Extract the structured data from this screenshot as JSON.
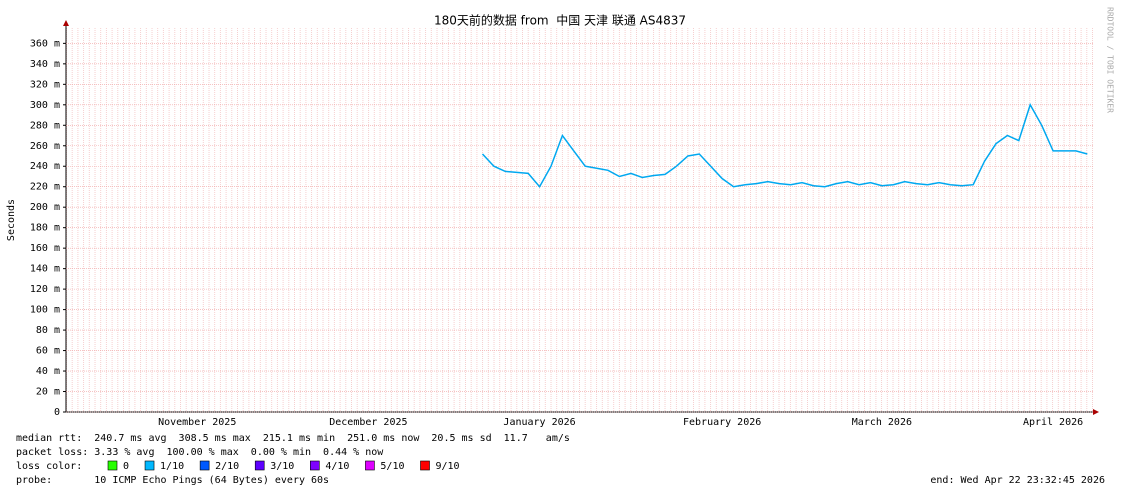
{
  "chart_data": {
    "type": "line",
    "title": "180天前的数据 from  中国 天津 联通 AS4837",
    "y_label": "Seconds",
    "watermark": "RRDTOOL / TOBI OETIKER",
    "categories": [
      null,
      null,
      null,
      null,
      null,
      null,
      null,
      null,
      null,
      null,
      null,
      "November 2025",
      null,
      null,
      null,
      null,
      null,
      null,
      null,
      null,
      null,
      null,
      null,
      null,
      null,
      null,
      "December 2025",
      null,
      null,
      null,
      null,
      null,
      null,
      null,
      null,
      null,
      null,
      null,
      null,
      null,
      null,
      "January 2026",
      null,
      null,
      null,
      null,
      null,
      null,
      null,
      null,
      null,
      null,
      null,
      null,
      null,
      null,
      null,
      "February 2026",
      null,
      null,
      null,
      null,
      null,
      null,
      null,
      null,
      null,
      null,
      null,
      null,
      null,
      "March 2026",
      null,
      null,
      null,
      null,
      null,
      null,
      null,
      null,
      null,
      null,
      null,
      null,
      null,
      null,
      "April 2026",
      null,
      null,
      null
    ],
    "series": [
      {
        "name": "median rtt",
        "color": "#00a8f0",
        "values": [
          null,
          null,
          null,
          null,
          null,
          null,
          null,
          null,
          null,
          null,
          null,
          null,
          null,
          null,
          null,
          null,
          null,
          null,
          null,
          null,
          null,
          null,
          null,
          null,
          null,
          null,
          null,
          null,
          null,
          null,
          null,
          null,
          null,
          null,
          null,
          null,
          0.252,
          0.24,
          0.235,
          0.234,
          0.233,
          0.22,
          0.24,
          0.27,
          0.255,
          0.24,
          0.238,
          0.236,
          0.23,
          0.233,
          0.229,
          0.231,
          0.232,
          0.24,
          0.25,
          0.252,
          0.24,
          0.228,
          0.22,
          0.222,
          0.223,
          0.225,
          0.223,
          0.222,
          0.224,
          0.221,
          0.22,
          0.223,
          0.225,
          0.222,
          0.224,
          0.221,
          0.222,
          0.225,
          0.223,
          0.222,
          0.224,
          0.222,
          0.221,
          0.222,
          0.245,
          0.262,
          0.27,
          0.265,
          0.3,
          0.28,
          0.255,
          0.255,
          0.255,
          0.252
        ]
      }
    ],
    "ylim": [
      0,
      0.375
    ],
    "yticks": [
      0,
      {
        "value": 0.02,
        "label": "20 m"
      },
      {
        "value": 0.04,
        "label": "40 m"
      },
      {
        "value": 0.06,
        "label": "60 m"
      },
      {
        "value": 0.08,
        "label": "80 m"
      },
      {
        "value": 0.1,
        "label": "100 m"
      },
      {
        "value": 0.12,
        "label": "120 m"
      },
      {
        "value": 0.14,
        "label": "140 m"
      },
      {
        "value": 0.16,
        "label": "160 m"
      },
      {
        "value": 0.18,
        "label": "180 m"
      },
      {
        "value": 0.2,
        "label": "200 m"
      },
      {
        "value": 0.22,
        "label": "220 m"
      },
      {
        "value": 0.24,
        "label": "240 m"
      },
      {
        "value": 0.26,
        "label": "260 m"
      },
      {
        "value": 0.28,
        "label": "280 m"
      },
      {
        "value": 0.3,
        "label": "300 m"
      },
      {
        "value": 0.32,
        "label": "320 m"
      },
      {
        "value": 0.34,
        "label": "340 m"
      },
      {
        "value": 0.36,
        "label": "360 m"
      }
    ],
    "grid": true,
    "stats": [
      "median rtt:  240.7 ms avg  308.5 ms max  215.1 ms min  251.0 ms now  20.5 ms sd  11.7   am/s",
      "packet loss: 3.33 % avg  100.00 % max  0.00 % min  0.44 % now"
    ],
    "loss_legend": {
      "label": "loss color:",
      "items": [
        {
          "name": "0",
          "color": "#26ff00"
        },
        {
          "name": "1/10",
          "color": "#00b8ff"
        },
        {
          "name": "2/10",
          "color": "#0059ff"
        },
        {
          "name": "3/10",
          "color": "#5e00ff"
        },
        {
          "name": "4/10",
          "color": "#7e00ff"
        },
        {
          "name": "5/10",
          "color": "#dd00ff"
        },
        {
          "name": "9/10",
          "color": "#ff0000"
        }
      ]
    },
    "probe": "probe:       10 ICMP Echo Pings (64 Bytes) every 60s",
    "end": "end: Wed Apr 22 23:32:45 2026"
  }
}
